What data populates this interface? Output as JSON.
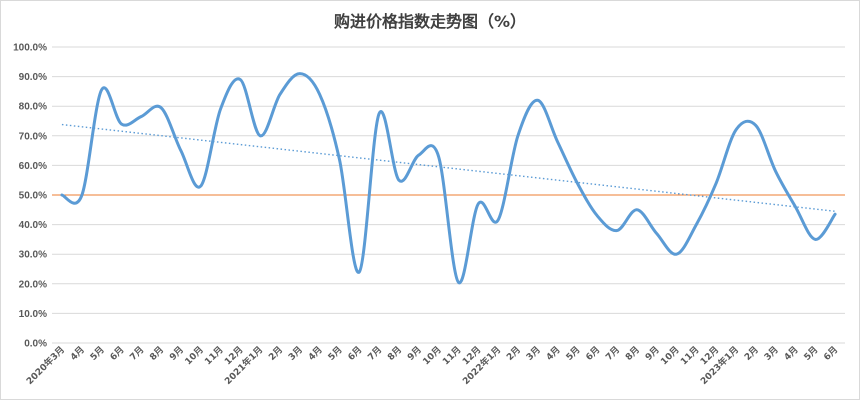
{
  "chart_data": {
    "type": "line",
    "title": "购进价格指数走势图（%）",
    "xlabel": "",
    "ylabel": "",
    "ylim": [
      0,
      100
    ],
    "y_ticks": [
      "0.0%",
      "10.0%",
      "20.0%",
      "30.0%",
      "40.0%",
      "50.0%",
      "60.0%",
      "70.0%",
      "80.0%",
      "90.0%",
      "100.0%"
    ],
    "grid": true,
    "legend": "none",
    "categories": [
      "2020年3月",
      "4月",
      "5月",
      "6月",
      "7月",
      "8月",
      "9月",
      "10月",
      "11月",
      "12月",
      "2021年1月",
      "2月",
      "3月",
      "4月",
      "5月",
      "6月",
      "7月",
      "8月",
      "9月",
      "10月",
      "11月",
      "12月",
      "2022年1月",
      "2月",
      "3月",
      "4月",
      "5月",
      "6月",
      "7月",
      "8月",
      "9月",
      "10月",
      "11月",
      "12月",
      "2023年1月",
      "2月",
      "3月",
      "4月",
      "5月",
      "6月"
    ],
    "series": [
      {
        "values": [
          50.0,
          49.8,
          85.5,
          74.0,
          76.5,
          79.5,
          65.0,
          53.0,
          79.0,
          89.0,
          70.0,
          84.0,
          91.0,
          84.0,
          62.0,
          24.0,
          77.5,
          55.0,
          63.5,
          63.0,
          20.5,
          47.0,
          41.5,
          70.0,
          82.0,
          68.0,
          54.0,
          43.0,
          38.0,
          45.0,
          37.0,
          30.0,
          40.0,
          54.0,
          72.0,
          73.5,
          58.0,
          46.0,
          35.0,
          43.5
        ],
        "color": "#5b9bd5"
      }
    ],
    "reference_line": {
      "value": 50.0,
      "color": "#ed7d31"
    },
    "trendline": {
      "start": 73.8,
      "end": 44.5,
      "color": "#5b9bd5"
    }
  }
}
